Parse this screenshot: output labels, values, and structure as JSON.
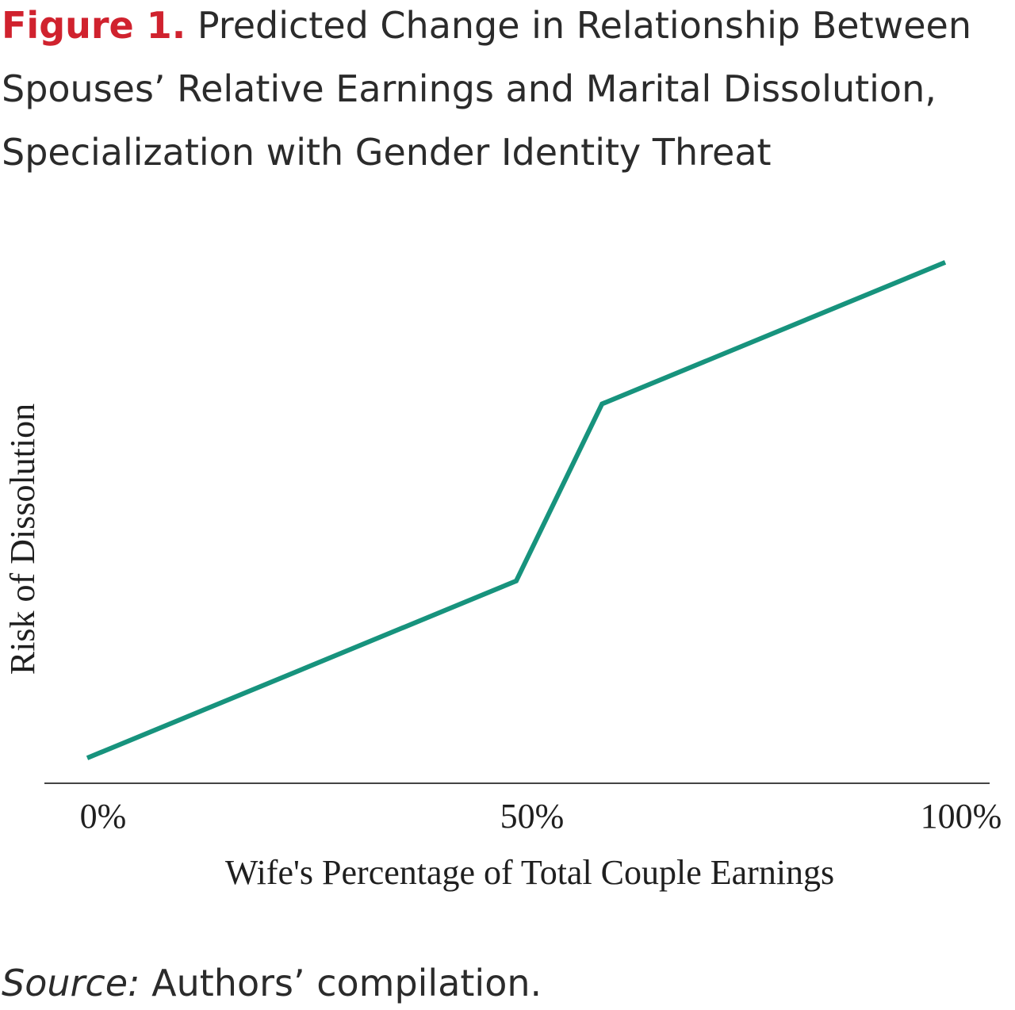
{
  "figure": {
    "label": "Figure 1.",
    "title": "Predicted Change in Relationship Between Spouses’ Relative Earnings and Marital Dissolution, Specialization with Gender Identity Threat"
  },
  "source": {
    "label": "Source:",
    "text": "Authors’ compilation."
  },
  "colors": {
    "line": "#17937d",
    "axis": "#444444",
    "figure_label": "#d0222e"
  },
  "chart_data": {
    "type": "line",
    "title": "Predicted Change in Relationship Between Spouses’ Relative Earnings and Marital Dissolution, Specialization with Gender Identity Threat",
    "xlabel": "Wife's Percentage of Total Couple Earnings",
    "ylabel": "Risk of Dissolution",
    "xlim": [
      0,
      100
    ],
    "ylim": [
      0,
      100
    ],
    "x_ticks": [
      {
        "value": 0,
        "label": "0%"
      },
      {
        "value": 50,
        "label": "50%"
      },
      {
        "value": 100,
        "label": "100%"
      }
    ],
    "y_ticks": [],
    "grid": false,
    "legend": "none",
    "series": [
      {
        "x": [
          0,
          50,
          60,
          100
        ],
        "y": [
          5,
          40,
          75,
          103
        ]
      }
    ]
  }
}
